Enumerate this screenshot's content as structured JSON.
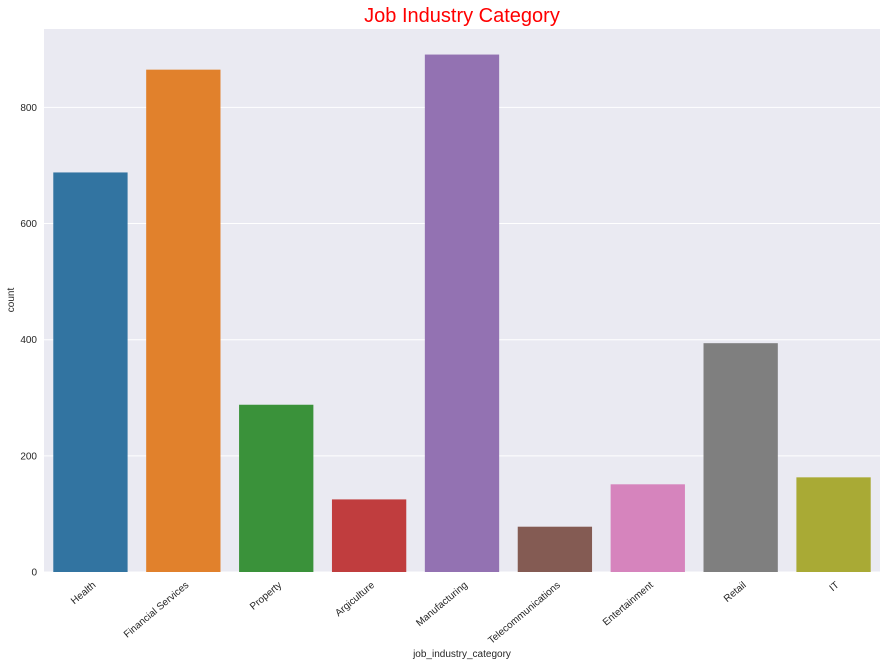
{
  "chart_data": {
    "type": "bar",
    "title": "Job Industry Category",
    "title_color": "#ff0000",
    "xlabel": "job_industry_category",
    "ylabel": "count",
    "categories": [
      "Health",
      "Financial Services",
      "Property",
      "Argiculture",
      "Manufacturing",
      "Telecommunications",
      "Entertainment",
      "Retail",
      "IT"
    ],
    "values": [
      688,
      865,
      288,
      125,
      891,
      78,
      151,
      394,
      163
    ],
    "colors": [
      "#3274a1",
      "#e1812c",
      "#3a923a",
      "#c03d3e",
      "#9372b2",
      "#845b53",
      "#d684bd",
      "#7f7f7f",
      "#a9aa35"
    ],
    "ylim": [
      0,
      935
    ],
    "yticks": [
      0,
      200,
      400,
      600,
      800
    ],
    "grid": true,
    "plot_background": "#eaeaf2",
    "legend": "none"
  }
}
